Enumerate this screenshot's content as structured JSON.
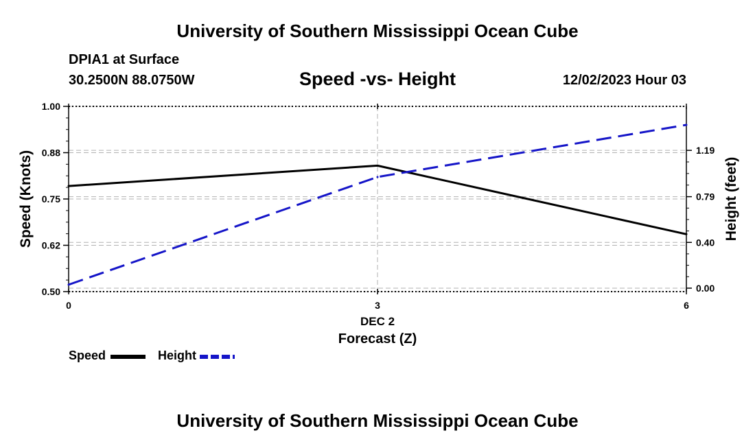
{
  "header": {
    "title_top": "University of Southern Mississippi Ocean Cube",
    "title_bottom": "University of Southern Mississippi Ocean Cube",
    "station": "DPIA1 at Surface",
    "coords": "30.2500N  88.0750W",
    "datetime": "12/02/2023 Hour 03"
  },
  "chart_data": {
    "type": "line",
    "title": "Speed -vs- Height",
    "x": [
      0,
      3,
      6
    ],
    "x_tick_labels": [
      "0",
      "3",
      "6"
    ],
    "x_sublabel": "DEC 2",
    "xlabel": "Forecast (Z)",
    "xlim": [
      0,
      6
    ],
    "y_left": {
      "label": "Speed (Knots)",
      "lim": [
        0.5,
        1.0
      ],
      "ticks": [
        0.5,
        0.625,
        0.75,
        0.875,
        1.0
      ],
      "tick_labels": [
        "0.50",
        "0.62",
        "0.75",
        "0.88",
        "1.00"
      ]
    },
    "y_right": {
      "label": "Height (feet)",
      "lim": [
        -0.03,
        1.57
      ],
      "ticks": [
        0.0,
        0.395,
        0.79,
        1.19
      ],
      "tick_labels": [
        "0.00",
        "0.40",
        "0.79",
        "1.19"
      ]
    },
    "series": [
      {
        "name": "Speed",
        "axis": "left",
        "color": "#000000",
        "style": "solid",
        "values": [
          0.785,
          0.84,
          0.655
        ]
      },
      {
        "name": "Height",
        "axis": "right",
        "color": "#1515c8",
        "style": "dashed",
        "values": [
          0.03,
          0.96,
          1.41
        ]
      }
    ],
    "legend": {
      "position": "bottom-left",
      "items": [
        "Speed",
        "Height"
      ]
    }
  }
}
